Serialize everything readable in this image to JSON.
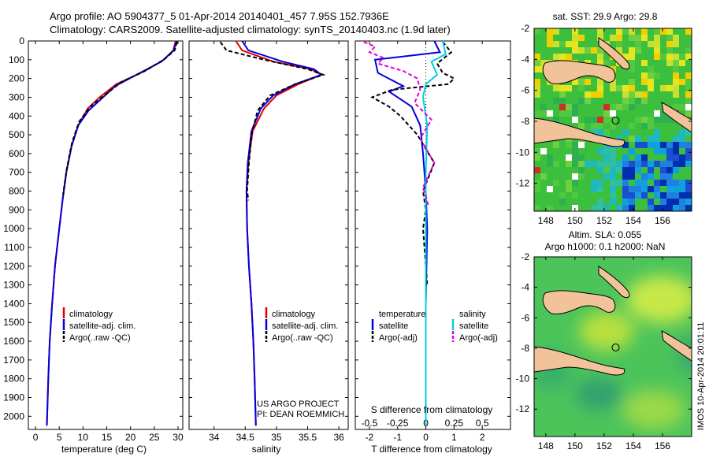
{
  "header": {
    "title_line1": "Argo profile: AO 5904377_5 01-Apr-2014 20140401_457 7.95S 152.7936E",
    "title_line2": "Climatology: CARS2009. Satellite-adjusted climatology: synTS_20140403.nc (1.9d later)"
  },
  "depth_axis": {
    "ticks": [
      0,
      100,
      200,
      300,
      400,
      500,
      600,
      700,
      800,
      900,
      1000,
      1100,
      1200,
      1300,
      1400,
      1500,
      1600,
      1700,
      1800,
      1900,
      2000
    ],
    "range": [
      0,
      2070
    ]
  },
  "chart_data": [
    {
      "type": "line",
      "id": "temperature",
      "xlabel": "temperature (deg C)",
      "xlim": [
        -1.5,
        31
      ],
      "xticks": [
        0,
        5,
        10,
        15,
        20,
        25,
        30
      ],
      "ylabel": "depth",
      "ylim": [
        0,
        2070
      ],
      "series": [
        {
          "name": "climatology",
          "color": "#e00000",
          "dash": "",
          "x": [
            29.5,
            29.0,
            27.0,
            23.0,
            17.0,
            13.5,
            11.0,
            9.0,
            7.6,
            6.5,
            5.7,
            5.0,
            4.1,
            3.5,
            3.0,
            2.7,
            2.4
          ],
          "y": [
            0,
            50,
            100,
            160,
            230,
            300,
            360,
            450,
            560,
            700,
            850,
            1000,
            1200,
            1400,
            1600,
            1800,
            2050
          ]
        },
        {
          "name": "satellite-adj. clim.",
          "color": "#0000e0",
          "dash": "",
          "x": [
            29.7,
            29.1,
            26.5,
            22.0,
            16.8,
            13.8,
            11.2,
            9.0,
            7.6,
            6.5,
            5.7,
            5.0,
            4.1,
            3.5,
            3.0,
            2.7,
            2.4
          ],
          "y": [
            0,
            50,
            110,
            170,
            240,
            310,
            370,
            450,
            560,
            700,
            850,
            1000,
            1200,
            1400,
            1600,
            1800,
            2050
          ]
        },
        {
          "name": "Argo(..raw -QC)",
          "color": "#000000",
          "dash": "5,3",
          "x": [
            29.8,
            29.3,
            27.0,
            23.0,
            18.0,
            14.5,
            11.5,
            9.2,
            7.7,
            6.6,
            5.8
          ],
          "y": [
            5,
            50,
            100,
            160,
            220,
            290,
            350,
            430,
            540,
            680,
            820
          ]
        }
      ],
      "legend": [
        "climatology",
        "satellite-adj. clim.",
        "Argo(..raw -QC)"
      ],
      "legend_colors": [
        "#e00000",
        "#0000e0",
        "#000000"
      ]
    },
    {
      "type": "line",
      "id": "salinity",
      "xlabel": "salinity",
      "xlim": [
        33.6,
        36.15
      ],
      "xticks": [
        34,
        34.5,
        35,
        35.5,
        36
      ],
      "ylabel": "depth",
      "ylim": [
        0,
        2070
      ],
      "series": [
        {
          "name": "climatology",
          "color": "#e00000",
          "dash": "",
          "x": [
            34.35,
            34.45,
            34.95,
            35.55,
            35.72,
            35.35,
            35.0,
            34.8,
            34.62,
            34.55,
            34.52,
            34.53,
            34.56,
            34.6,
            34.63,
            34.65,
            34.67
          ],
          "y": [
            0,
            50,
            110,
            150,
            180,
            230,
            290,
            360,
            480,
            650,
            800,
            1000,
            1200,
            1400,
            1600,
            1800,
            2050
          ]
        },
        {
          "name": "satellite-adj. clim.",
          "color": "#0000e0",
          "dash": "",
          "x": [
            34.45,
            34.55,
            35.1,
            35.6,
            35.72,
            35.3,
            34.95,
            34.75,
            34.6,
            34.54,
            34.52,
            34.53,
            34.56,
            34.6,
            34.63,
            34.65,
            34.67
          ],
          "y": [
            0,
            50,
            110,
            150,
            180,
            230,
            290,
            360,
            480,
            650,
            800,
            1000,
            1200,
            1400,
            1600,
            1800,
            2050
          ]
        },
        {
          "name": "Argo(..raw -QC)",
          "color": "#000000",
          "dash": "5,3",
          "x": [
            34.1,
            34.2,
            34.8,
            35.5,
            35.75,
            35.3,
            34.9,
            34.7,
            34.6,
            34.56,
            34.53,
            34.55
          ],
          "y": [
            5,
            50,
            100,
            150,
            180,
            230,
            290,
            370,
            500,
            650,
            800,
            850
          ]
        }
      ],
      "legend": [
        "climatology",
        "satellite-adj. clim.",
        "Argo(..raw -QC)"
      ],
      "legend_colors": [
        "#e00000",
        "#0000e0",
        "#000000"
      ],
      "annotation_line1": "US ARGO PROJECT",
      "annotation_line2": "PI: DEAN ROEMMICH"
    },
    {
      "type": "line",
      "id": "difference",
      "xlabel": "T difference from climatology",
      "xlabel_top": "S difference from climatology",
      "xlim": [
        -2.5,
        3.0
      ],
      "xticks": [
        -2,
        -1,
        0,
        1,
        2
      ],
      "s_tick_labels": [
        "-0.5",
        "-0.25",
        "0",
        "0.25",
        "0.5"
      ],
      "s_tick_positions_T": [
        -2,
        -1,
        0,
        1,
        2
      ],
      "ylabel": "depth",
      "ylim": [
        0,
        2070
      ],
      "series": [
        {
          "name": "temperature satellite",
          "color": "#0000e0",
          "dash": "",
          "x": [
            0.3,
            0.5,
            -1.8,
            -1.7,
            -0.8,
            -1.3,
            -1.0,
            -0.5,
            -0.2,
            -0.1,
            0.0,
            0.05,
            0.0,
            0.0,
            0.0
          ],
          "y": [
            0,
            60,
            100,
            170,
            240,
            270,
            300,
            350,
            450,
            600,
            800,
            1000,
            1400,
            1800,
            2050
          ]
        },
        {
          "name": "temperature Argo(-adj)",
          "color": "#000000",
          "dash": "5,3",
          "x": [
            0.6,
            0.9,
            0.4,
            0.6,
            1.0,
            0.8,
            -1.2,
            -1.9,
            -1.3,
            -0.9,
            -0.6,
            -0.3,
            0.3,
            -0.1,
            0.0,
            -0.1,
            0.05
          ],
          "y": [
            5,
            60,
            120,
            170,
            200,
            230,
            260,
            300,
            350,
            400,
            450,
            500,
            650,
            800,
            900,
            1000,
            1300
          ]
        },
        {
          "name": "salinity satellite",
          "color": "#00d0e0",
          "dash": "",
          "x": [
            0.6,
            0.7,
            0.2,
            0.4,
            0.0,
            -0.1,
            0.05,
            0.0,
            0.0,
            0.0
          ],
          "y": [
            0,
            70,
            110,
            180,
            230,
            300,
            450,
            700,
            1200,
            2050
          ]
        },
        {
          "name": "salinity Argo(-adj)",
          "color": "#e000e0",
          "dash": "5,3",
          "x": [
            -2.2,
            -1.8,
            -2.0,
            -1.5,
            -1.7,
            -0.8,
            -0.3,
            -0.2,
            -0.4,
            0.2,
            -0.2,
            0.3,
            -0.1,
            0.1
          ],
          "y": [
            5,
            30,
            60,
            90,
            120,
            160,
            200,
            260,
            330,
            420,
            520,
            650,
            780,
            880
          ]
        }
      ],
      "legend_headers": [
        "temperature",
        "salinity"
      ],
      "legend_temp": [
        "satellite",
        "Argo(-adj)"
      ],
      "legend_sal": [
        "satellite",
        "Argo(-adj)"
      ],
      "legend_temp_colors": [
        "#0000e0",
        "#000000"
      ],
      "legend_sal_colors": [
        "#00d0e0",
        "#e000e0"
      ]
    }
  ],
  "maps": [
    {
      "id": "sst",
      "title": "sat. SST: 29.9 Argo: 29.8",
      "lon_range": [
        147.2,
        158.0
      ],
      "lat_range": [
        -13.8,
        -2.0
      ],
      "lon_ticks": [
        148,
        150,
        152,
        154,
        156
      ],
      "lat_ticks": [
        -2,
        -4,
        -6,
        -8,
        -10,
        -12
      ],
      "argo_lon": 152.79,
      "argo_lat": -7.95
    },
    {
      "id": "sla",
      "title_line1": "Altim. SLA: 0.055",
      "title_line2": "Argo h1000: 0.1 h2000: NaN",
      "lon_range": [
        147.2,
        158.0
      ],
      "lat_range": [
        -13.8,
        -2.0
      ],
      "lon_ticks": [
        148,
        150,
        152,
        154,
        156
      ],
      "lat_ticks": [
        -2,
        -4,
        -6,
        -8,
        -10,
        -12
      ],
      "argo_lon": 152.79,
      "argo_lat": -7.95
    }
  ],
  "footer": {
    "imos_stamp": "IMOS 10-Apr-2014 20:01:11"
  }
}
